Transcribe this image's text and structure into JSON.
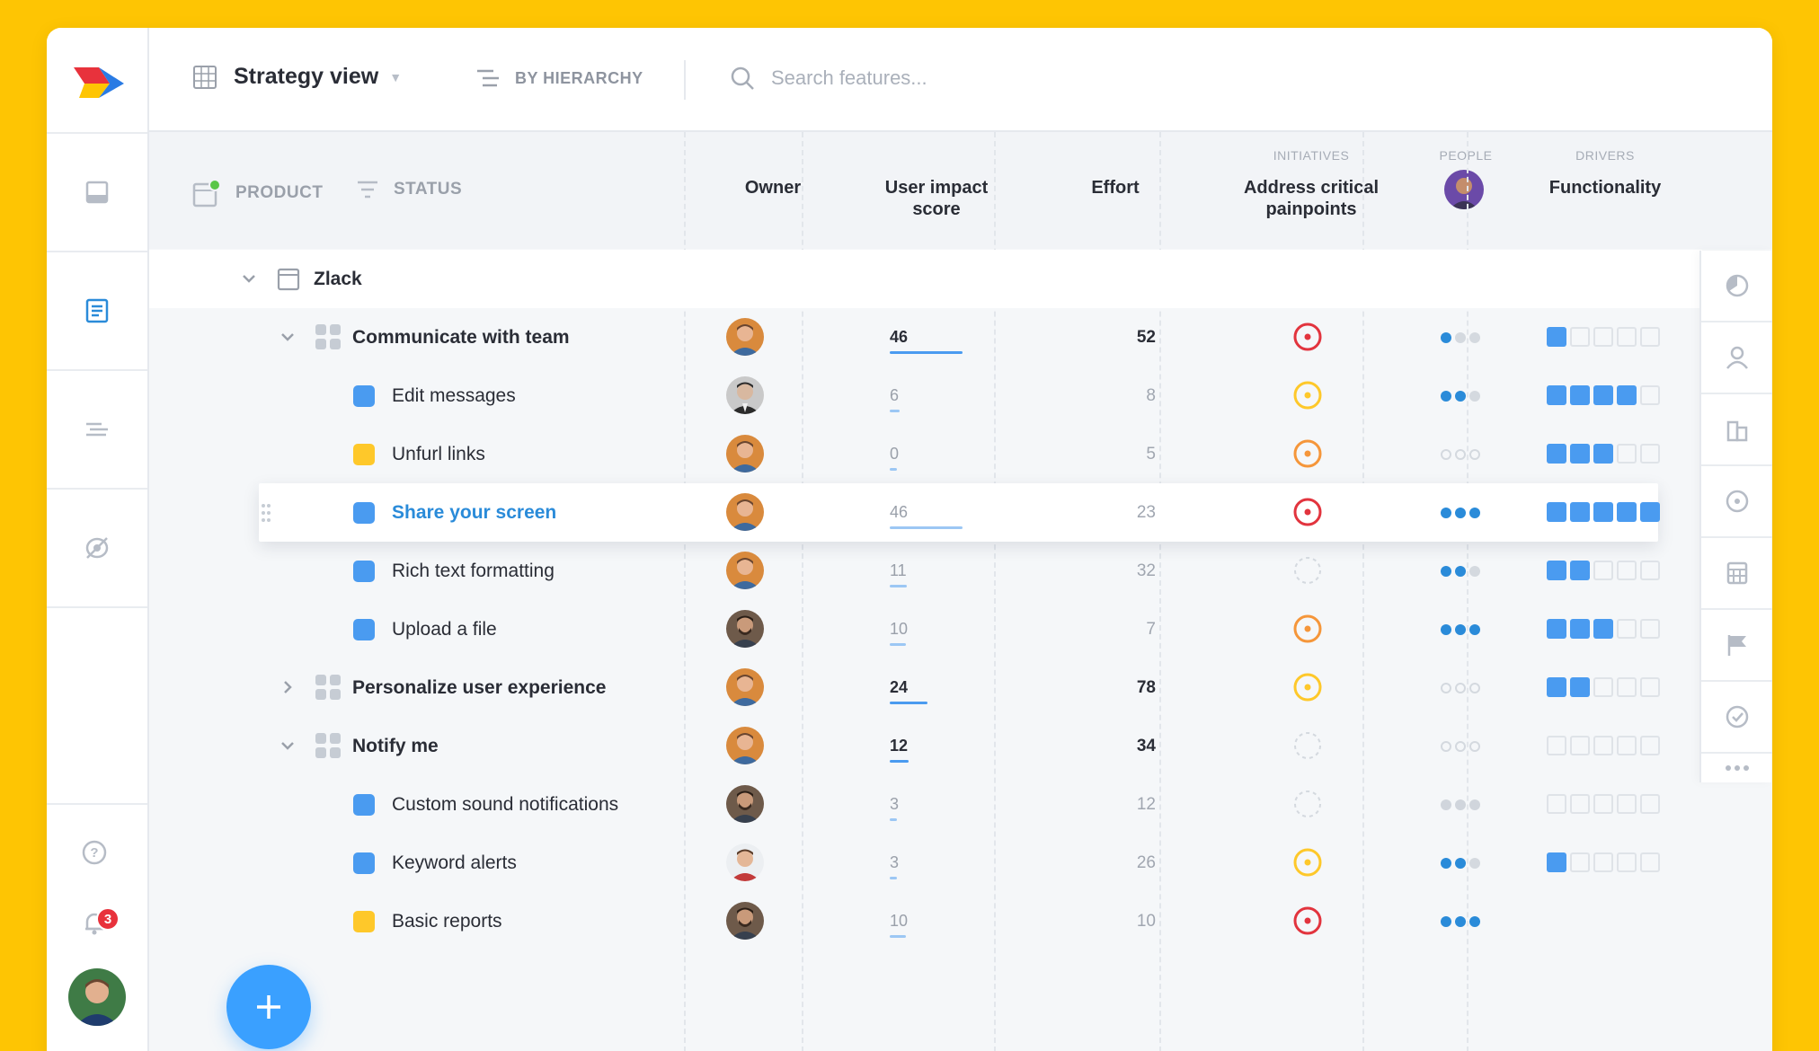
{
  "topbar": {
    "view_label": "Strategy view",
    "hierarchy_label": "BY HIERARCHY",
    "search_placeholder": "Search features..."
  },
  "filters": {
    "product_label": "PRODUCT",
    "status_label": "STATUS"
  },
  "columns": {
    "owner": "Owner",
    "user_impact_line1": "User impact",
    "user_impact_line2": "score",
    "effort": "Effort",
    "initiatives_group": "INITIATIVES",
    "address_line1": "Address critical",
    "address_line2": "painpoints",
    "people_group": "PEOPLE",
    "drivers_group": "DRIVERS",
    "functionality": "Functionality"
  },
  "notifications_count": "3",
  "colors": {
    "blue": "#4a9bf0",
    "yellow": "#fec82a",
    "red": "#e2343e",
    "orange": "#f5963a",
    "accent": "#2a8bd9"
  },
  "product": {
    "name": "Zlack"
  },
  "rows": [
    {
      "type": "feature",
      "name": "Communicate with team",
      "expanded": true,
      "score": "46",
      "score_pct": 0.46,
      "effort": "52",
      "initiative": "red",
      "people": 1,
      "functionality": 1,
      "avatar": "a"
    },
    {
      "type": "sub",
      "name": "Edit messages",
      "status": "blue",
      "score": "6",
      "score_pct": 0.06,
      "effort": "8",
      "initiative": "yellow",
      "people": 2,
      "functionality": 4,
      "avatar": "b"
    },
    {
      "type": "sub",
      "name": "Unfurl links",
      "status": "yellow",
      "score": "0",
      "score_pct": 0.0,
      "effort": "5",
      "initiative": "orange",
      "people": 0,
      "functionality": 3,
      "avatar": "a"
    },
    {
      "type": "sub",
      "name": "Share your screen",
      "status": "blue",
      "score": "46",
      "score_pct": 0.46,
      "effort": "23",
      "initiative": "red",
      "people": 3,
      "functionality": 5,
      "avatar": "a",
      "highlighted": true
    },
    {
      "type": "sub",
      "name": "Rich text formatting",
      "status": "blue",
      "score": "11",
      "score_pct": 0.11,
      "effort": "32",
      "initiative": "none",
      "people": 2,
      "functionality": 2,
      "avatar": "a"
    },
    {
      "type": "sub",
      "name": "Upload a file",
      "status": "blue",
      "score": "10",
      "score_pct": 0.1,
      "effort": "7",
      "initiative": "orange",
      "people": 3,
      "functionality": 3,
      "avatar": "c"
    },
    {
      "type": "feature",
      "name": "Personalize user experience",
      "expanded": false,
      "score": "24",
      "score_pct": 0.24,
      "effort": "78",
      "initiative": "yellow",
      "people": 0,
      "functionality": 2,
      "avatar": "a"
    },
    {
      "type": "feature",
      "name": "Notify me",
      "expanded": true,
      "score": "12",
      "score_pct": 0.12,
      "effort": "34",
      "initiative": "none",
      "people": 0,
      "functionality": 0,
      "avatar": "a"
    },
    {
      "type": "sub",
      "name": "Custom sound notifications",
      "status": "blue",
      "score": "3",
      "score_pct": 0.03,
      "effort": "12",
      "initiative": "none",
      "people": -1,
      "functionality": 0,
      "avatar": "c"
    },
    {
      "type": "sub",
      "name": "Keyword alerts",
      "status": "blue",
      "score": "3",
      "score_pct": 0.03,
      "effort": "26",
      "initiative": "yellow",
      "people": 2,
      "functionality": 1,
      "avatar": "d"
    },
    {
      "type": "sub",
      "name": "Basic reports",
      "status": "yellow",
      "score": "10",
      "score_pct": 0.1,
      "effort": "10",
      "initiative": "red",
      "people": 3,
      "functionality": -1,
      "avatar": "c"
    }
  ]
}
